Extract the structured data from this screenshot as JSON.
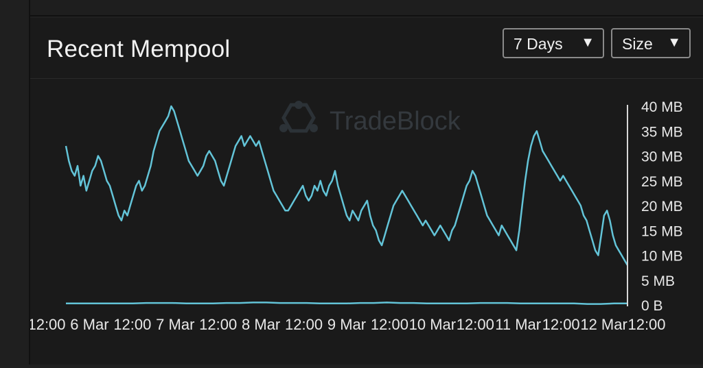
{
  "panel": {
    "title": "Recent Mempool",
    "range_select": {
      "value": "7 Days",
      "caret": "▼"
    },
    "metric_select": {
      "value": "Size",
      "caret": "▼"
    }
  },
  "watermark": {
    "text": "TradeBlock"
  },
  "colors": {
    "line": "#63c4d8",
    "axis": "#d8d8d8",
    "text": "#e8e8e8",
    "watermark": "#3a3f44"
  },
  "chart_data": {
    "type": "line",
    "title": "",
    "xlabel": "",
    "ylabel": "",
    "x_tick_labels": [
      "12:00",
      "6 Mar",
      "12:00",
      "7 Mar",
      "12:00",
      "8 Mar",
      "12:00",
      "9 Mar",
      "12:00",
      "10 Mar",
      "12:00",
      "11 Mar",
      "12:00",
      "12 Mar",
      "12:00"
    ],
    "y_tick_labels": [
      "0 B",
      "5 MB",
      "10 MB",
      "15 MB",
      "20 MB",
      "25 MB",
      "30 MB",
      "35 MB",
      "40 MB"
    ],
    "y_unit": "MB",
    "ylim": [
      0,
      40
    ],
    "y_axis_side": "right",
    "grid": false,
    "series": [
      {
        "values": [
          32,
          29,
          27,
          26,
          28,
          24,
          26,
          23,
          25,
          27,
          28,
          30,
          29,
          27,
          25,
          24,
          22,
          20,
          18,
          17,
          19,
          18,
          20,
          22,
          24,
          25,
          23,
          24,
          26,
          28,
          31,
          33,
          35,
          36,
          37,
          38,
          40,
          39,
          37,
          35,
          33,
          31,
          29,
          28,
          27,
          26,
          27,
          28,
          30,
          31,
          30,
          29,
          27,
          25,
          24,
          26,
          28,
          30,
          32,
          33,
          34,
          32,
          33,
          34,
          33,
          32,
          33,
          31,
          29,
          27,
          25,
          23,
          22,
          21,
          20,
          19,
          19,
          20,
          21,
          22,
          23,
          24,
          22,
          21,
          22,
          24,
          23,
          25,
          23,
          22,
          24,
          25,
          27,
          24,
          22,
          20,
          18,
          17,
          19,
          18,
          17,
          19,
          20,
          21,
          18,
          16,
          15,
          13,
          12,
          14,
          16,
          18,
          20,
          21,
          22,
          23,
          22,
          21,
          20,
          19,
          18,
          17,
          16,
          17,
          16,
          15,
          14,
          15,
          16,
          15,
          14,
          13,
          15,
          16,
          18,
          20,
          22,
          24,
          25,
          27,
          26,
          24,
          22,
          20,
          18,
          17,
          16,
          15,
          14,
          16,
          15,
          14,
          13,
          12,
          11,
          15,
          20,
          25,
          29,
          32,
          34,
          35,
          33,
          31,
          30,
          29,
          28,
          27,
          26,
          25,
          26,
          25,
          24,
          23,
          22,
          21,
          20,
          18,
          17,
          15,
          13,
          11,
          10,
          14,
          18,
          19,
          17,
          14,
          12,
          11,
          10,
          9,
          8
        ]
      },
      {
        "values": [
          0.3,
          0.3,
          0.3,
          0.3,
          0.3,
          0.3,
          0.4,
          0.4,
          0.4,
          0.3,
          0.3,
          0.3,
          0.4,
          0.4,
          0.5,
          0.5,
          0.4,
          0.4,
          0.4,
          0.3,
          0.3,
          0.3,
          0.4,
          0.4,
          0.5,
          0.4,
          0.4,
          0.3,
          0.3,
          0.3,
          0.3,
          0.4,
          0.4,
          0.4,
          0.3,
          0.3,
          0.3,
          0.3,
          0.3,
          0.2,
          0.2,
          0.3,
          0.3
        ]
      }
    ]
  }
}
